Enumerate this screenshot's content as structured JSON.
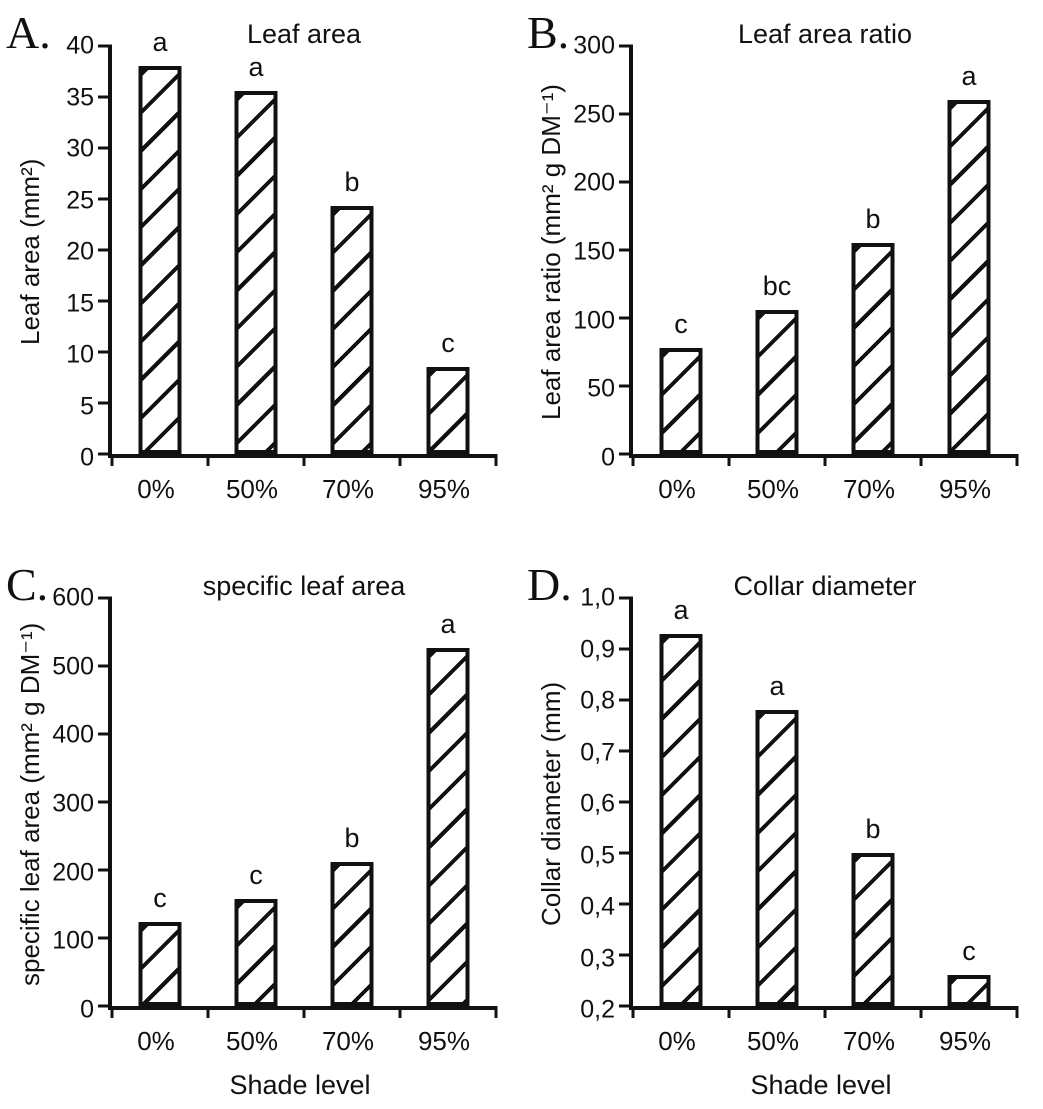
{
  "colors": {
    "ink": "#111111",
    "background": "#ffffff",
    "bar_fill": "#ffffff",
    "bar_pattern": "forward-diagonal-hatch"
  },
  "chart_data": [
    {
      "type": "bar",
      "panel": "A.",
      "title": "Leaf area",
      "ylabel": "Leaf area (mm²)",
      "xlabel": "",
      "categories": [
        "0%",
        "50%",
        "70%",
        "95%"
      ],
      "values": [
        38.0,
        35.6,
        24.3,
        8.5
      ],
      "sig_letters": [
        "a",
        "a",
        "b",
        "c"
      ],
      "ylim": [
        0,
        40
      ],
      "ytick_step": 5,
      "ytick_labels": [
        "0",
        "5",
        "10",
        "15",
        "20",
        "25",
        "30",
        "35",
        "40"
      ],
      "grid": false,
      "legend": "none"
    },
    {
      "type": "bar",
      "panel": "B.",
      "title": "Leaf area ratio",
      "ylabel": "Leaf area ratio (mm² g DM⁻¹)",
      "xlabel": "",
      "categories": [
        "0%",
        "50%",
        "70%",
        "95%"
      ],
      "values": [
        78,
        106,
        155,
        260
      ],
      "sig_letters": [
        "c",
        "bc",
        "b",
        "a"
      ],
      "ylim": [
        0,
        300
      ],
      "ytick_step": 50,
      "ytick_labels": [
        "0",
        "50",
        "100",
        "150",
        "200",
        "250",
        "300"
      ],
      "grid": false,
      "legend": "none"
    },
    {
      "type": "bar",
      "panel": "C.",
      "title": "specific leaf area",
      "ylabel": "specific leaf area (mm² g DM⁻¹)",
      "xlabel": "Shade level",
      "categories": [
        "0%",
        "50%",
        "70%",
        "95%"
      ],
      "values": [
        123,
        157,
        212,
        527
      ],
      "sig_letters": [
        "c",
        "c",
        "b",
        "a"
      ],
      "ylim": [
        0,
        600
      ],
      "ytick_step": 100,
      "ytick_labels": [
        "0",
        "100",
        "200",
        "300",
        "400",
        "500",
        "600"
      ],
      "grid": false,
      "legend": "none"
    },
    {
      "type": "bar",
      "panel": "D.",
      "title": "Collar diameter",
      "ylabel": "Collar diameter (mm)",
      "xlabel": "Shade level",
      "categories": [
        "0%",
        "50%",
        "70%",
        "95%"
      ],
      "values": [
        0.93,
        0.78,
        0.5,
        0.26
      ],
      "sig_letters": [
        "a",
        "a",
        "b",
        "c"
      ],
      "ylim": [
        0.2,
        1.0
      ],
      "ytick_step": 0.1,
      "ytick_labels": [
        "0,2",
        "0,3",
        "0,4",
        "0,5",
        "0,6",
        "0,7",
        "0,8",
        "0,9",
        "1,0"
      ],
      "grid": false,
      "legend": "none"
    }
  ]
}
